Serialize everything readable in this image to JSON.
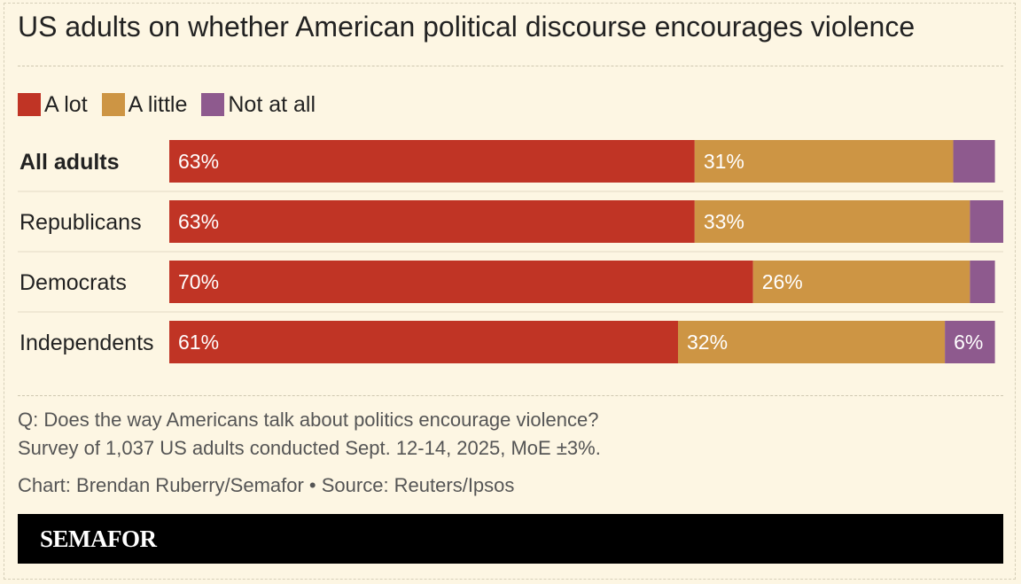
{
  "chart_data": {
    "type": "bar",
    "orientation": "horizontal",
    "stacked": true,
    "title": "US adults on whether American political discourse encourages violence",
    "categories": [
      "All adults",
      "Republicans",
      "Democrats",
      "Independents"
    ],
    "series": [
      {
        "name": "A lot",
        "color": "#c03425",
        "values": [
          63,
          63,
          70,
          61
        ],
        "labels": [
          "63%",
          "63%",
          "70%",
          "61%"
        ]
      },
      {
        "name": "A little",
        "color": "#cd9544",
        "values": [
          31,
          33,
          26,
          32
        ],
        "labels": [
          "31%",
          "33%",
          "26%",
          "32%"
        ]
      },
      {
        "name": "Not at all",
        "color": "#8e5a8e",
        "values": [
          5,
          4,
          3,
          6
        ],
        "labels": [
          "",
          "",
          "",
          "6%"
        ]
      }
    ],
    "xlim": [
      0,
      100
    ]
  },
  "legend": {
    "items": [
      {
        "label": "A lot",
        "color": "#c03425"
      },
      {
        "label": "A little",
        "color": "#cd9544"
      },
      {
        "label": "Not at all",
        "color": "#8e5a8e"
      }
    ]
  },
  "notes": {
    "question": "Q: Does the way Americans talk about politics encourage violence?",
    "survey": "Survey of 1,037 US adults conducted Sept. 12-14, 2025, MoE ±3%.",
    "credit": "Chart: Brendan Ruberry/Semafor • Source: Reuters/Ipsos"
  },
  "footer": {
    "brand": "SEMAFOR"
  }
}
